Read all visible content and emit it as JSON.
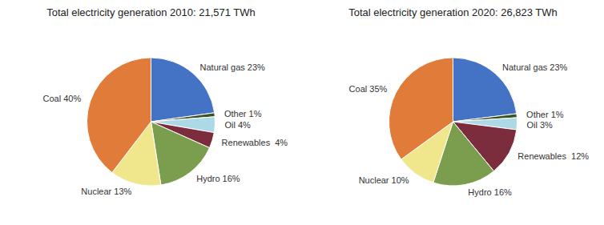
{
  "chart_data": [
    {
      "type": "pie",
      "title": "Total electricity generation 2010: 21,571 TWh",
      "categories": [
        "Natural gas 23%",
        "Other 1%",
        "Oil 4%",
        "Renewables  4%",
        "Hydro 16%",
        "Nuclear 13%",
        "Coal 40%"
      ],
      "values": [
        23,
        1,
        4,
        4,
        16,
        13,
        40
      ],
      "colors": [
        "#4472C4",
        "#3B5323",
        "#ADD8E6",
        "#7B2D3E",
        "#7A9E4E",
        "#F0E68C",
        "#E07B3A"
      ]
    },
    {
      "type": "pie",
      "title": "Total electricity generation 2020: 26,823 TWh",
      "categories": [
        "Natural gas 23%",
        "Other 1%",
        "Oil 3%",
        "Renewables  12%",
        "Hydro 16%",
        "Nuclear 10%",
        "Coal 35%"
      ],
      "values": [
        23,
        1,
        3,
        12,
        16,
        10,
        35
      ],
      "colors": [
        "#4472C4",
        "#3B5323",
        "#ADD8E6",
        "#7B2D3E",
        "#7A9E4E",
        "#F0E68C",
        "#E07B3A"
      ]
    }
  ]
}
